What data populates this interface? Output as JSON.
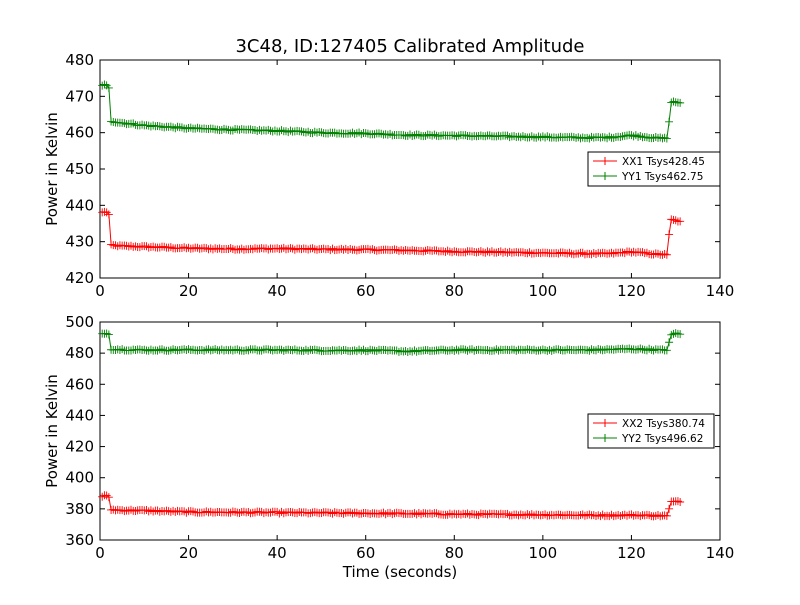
{
  "chart_data": [
    {
      "type": "line",
      "title": "3C48, ID:127405 Calibrated Amplitude",
      "xlabel": "",
      "ylabel": "Power in Kelvin",
      "xlim": [
        0,
        140
      ],
      "ylim": [
        420,
        480
      ],
      "xticks": [
        0,
        20,
        40,
        60,
        80,
        100,
        120,
        140
      ],
      "yticks": [
        420,
        430,
        440,
        450,
        460,
        470,
        480
      ],
      "grid": false,
      "legend_position": "center-right",
      "series": [
        {
          "name": "XX1 Tsys428.45",
          "color": "#ff0000",
          "x": [
            0.5,
            1,
            1.5,
            2,
            2.5,
            5,
            10,
            20,
            30,
            40,
            50,
            60,
            70,
            80,
            90,
            100,
            110,
            115,
            120,
            125,
            128,
            128.5,
            129,
            130,
            131
          ],
          "y": [
            438,
            438.3,
            438,
            437.5,
            429,
            428.8,
            428.6,
            428.2,
            428.0,
            428.1,
            427.9,
            427.8,
            427.6,
            427.3,
            427.1,
            426.9,
            426.7,
            426.7,
            427.2,
            426.6,
            426.4,
            432,
            436,
            435.8,
            435.6
          ]
        },
        {
          "name": "YY1 Tsys462.75",
          "color": "#008000",
          "x": [
            0.5,
            1,
            1.5,
            2,
            2.5,
            5,
            10,
            20,
            30,
            40,
            50,
            60,
            70,
            80,
            90,
            100,
            110,
            115,
            120,
            125,
            128,
            128.5,
            129,
            130,
            131
          ],
          "y": [
            472.8,
            473.1,
            472.9,
            472.3,
            463.2,
            462.7,
            462.0,
            461.2,
            460.8,
            460.5,
            460.0,
            459.8,
            459.3,
            459.2,
            459.0,
            458.8,
            458.6,
            458.7,
            459.3,
            458.6,
            458.4,
            463,
            468.5,
            468.4,
            468.2
          ]
        }
      ]
    },
    {
      "type": "line",
      "title": "",
      "xlabel": "Time (seconds)",
      "ylabel": "Power in Kelvin",
      "xlim": [
        0,
        140
      ],
      "ylim": [
        360,
        500
      ],
      "xticks": [
        0,
        20,
        40,
        60,
        80,
        100,
        120,
        140
      ],
      "yticks": [
        360,
        380,
        400,
        420,
        440,
        460,
        480,
        500
      ],
      "grid": false,
      "legend_position": "center-right",
      "series": [
        {
          "name": "XX2 Tsys380.74",
          "color": "#ff0000",
          "x": [
            0.5,
            1,
            1.5,
            2,
            2.5,
            5,
            10,
            20,
            30,
            40,
            50,
            60,
            70,
            80,
            90,
            100,
            110,
            115,
            120,
            125,
            128,
            128.5,
            129,
            130,
            131
          ],
          "y": [
            388,
            388.4,
            388.1,
            387.5,
            379.5,
            379.1,
            378.9,
            378.0,
            377.8,
            377.6,
            377.4,
            377.2,
            376.9,
            376.6,
            376.4,
            376.2,
            375.9,
            375.8,
            376.0,
            375.7,
            375.5,
            380,
            384.5,
            384.6,
            384.4
          ]
        },
        {
          "name": "YY2 Tsys496.62",
          "color": "#008000",
          "x": [
            0.5,
            1,
            1.5,
            2,
            2.5,
            5,
            10,
            20,
            30,
            40,
            50,
            60,
            70,
            80,
            90,
            100,
            110,
            115,
            120,
            125,
            128,
            128.5,
            129,
            130,
            131
          ],
          "y": [
            492.5,
            493.0,
            492.6,
            492.0,
            482.6,
            482.3,
            482.0,
            482.1,
            482.0,
            482.0,
            481.8,
            481.8,
            481.2,
            482.0,
            482.0,
            482.0,
            482.0,
            482.3,
            482.7,
            482.2,
            481.8,
            487,
            492.2,
            492.4,
            492.2
          ]
        }
      ]
    }
  ]
}
